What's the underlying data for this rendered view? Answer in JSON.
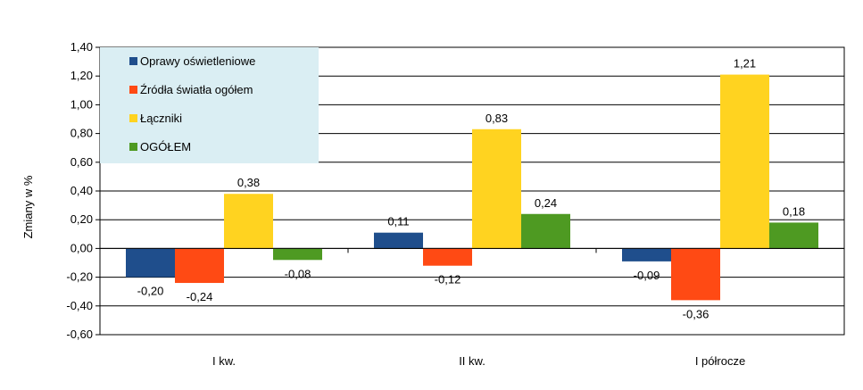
{
  "chart_data": {
    "type": "bar",
    "title": "",
    "xlabel": "",
    "ylabel": "Zmiany w %",
    "ylim": [
      -0.6,
      1.4
    ],
    "ytick_step": 0.2,
    "grid": true,
    "legend_position": "top-left",
    "categories": [
      "I kw.",
      "II kw.",
      "I półrocze"
    ],
    "series": [
      {
        "name": "Oprawy oświetleniowe",
        "color": "#1F4E8C",
        "values": [
          -0.2,
          0.11,
          -0.09
        ],
        "labels": [
          "-0,20",
          "0,11",
          "-0,09"
        ]
      },
      {
        "name": "Źródła światła ogółem",
        "color": "#FF4A14",
        "values": [
          -0.24,
          -0.12,
          -0.36
        ],
        "labels": [
          "-0,24",
          "-0,12",
          "-0,36"
        ]
      },
      {
        "name": "Łączniki",
        "color": "#FFD320",
        "values": [
          0.38,
          0.83,
          1.21
        ],
        "labels": [
          "0,38",
          "0,83",
          "1,21"
        ]
      },
      {
        "name": "OGÓŁEM",
        "color": "#4E9A22",
        "values": [
          -0.08,
          0.24,
          0.18
        ],
        "labels": [
          "-0,08",
          "0,24",
          "0,18"
        ]
      }
    ],
    "yticks": [
      "-0,60",
      "-0,40",
      "-0,20",
      "0,00",
      "0,20",
      "0,40",
      "0,60",
      "0,80",
      "1,00",
      "1,20",
      "1,40"
    ],
    "legend_background": "#DAEEF3"
  }
}
